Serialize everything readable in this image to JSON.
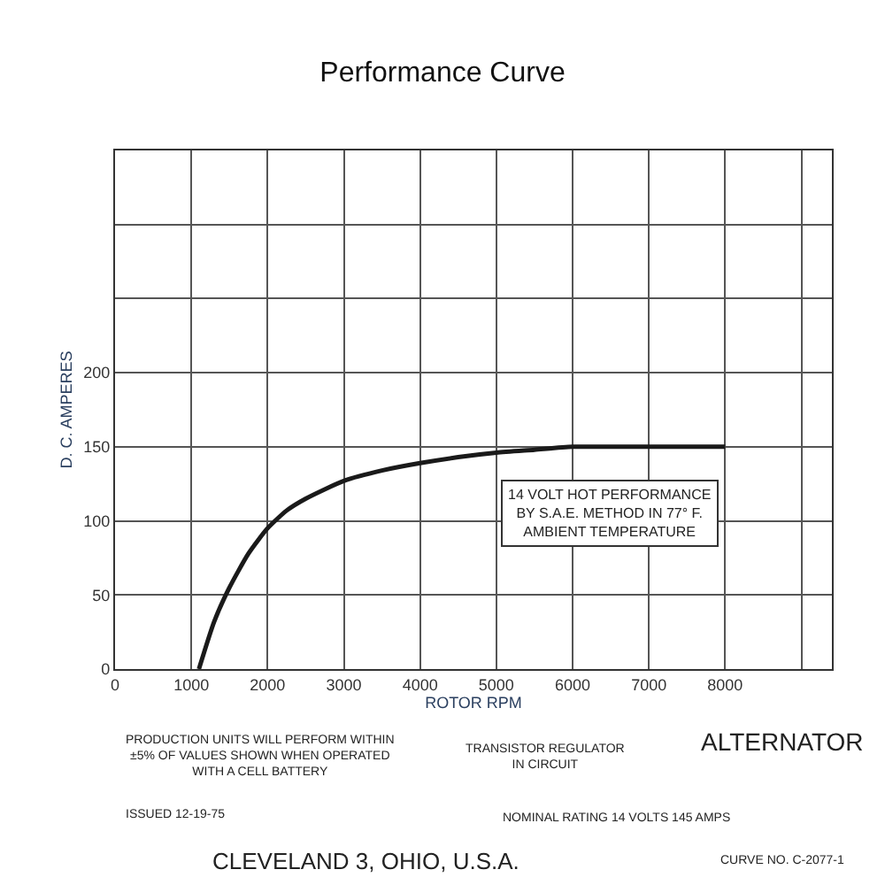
{
  "chart_data": {
    "type": "line",
    "title": "Performance Curve",
    "xlabel": "ROTOR RPM",
    "ylabel": "D. C. AMPERES",
    "x": [
      1100,
      1300,
      1500,
      1750,
      2000,
      2250,
      2500,
      3000,
      3500,
      4000,
      4500,
      5000,
      5500,
      6000,
      7000,
      8000
    ],
    "series": [
      {
        "color": "#1a1a1a",
        "values": [
          0,
          32,
          55,
          78,
          95,
          107,
          115,
          127,
          134,
          139,
          143,
          146,
          148,
          150,
          150,
          150
        ]
      }
    ],
    "xlim": [
      0,
      9400
    ],
    "ylim": [
      0,
      350
    ],
    "xticks": [
      0,
      1000,
      2000,
      3000,
      4000,
      5000,
      6000,
      7000,
      8000,
      {
        "value": 9000,
        "label": null
      }
    ],
    "yticks": [
      0,
      50,
      100,
      150,
      200,
      {
        "value": 250,
        "label": null
      },
      {
        "value": 300,
        "label": null
      }
    ],
    "grid": true,
    "legend": false,
    "marker": "none",
    "line_style": "solid",
    "annotations": [
      "14 VOLT HOT PERFORMANCE\nBY S.A.E. METHOD IN 77° F.\nAMBIENT TEMPERATURE",
      "PRODUCTION UNITS WILL PERFORM WITHIN\n±5% OF VALUES SHOWN WHEN OPERATED\nWITH A CELL BATTERY",
      "TRANSISTOR REGULATOR\nIN CIRCUIT",
      "ALTERNATOR",
      "ISSUED 12-19-75",
      "NOMINAL RATING 14 VOLTS 145 AMPS",
      "CLEVELAND 3, OHIO, U.S.A.",
      "CURVE NO. C-2077-1"
    ]
  }
}
